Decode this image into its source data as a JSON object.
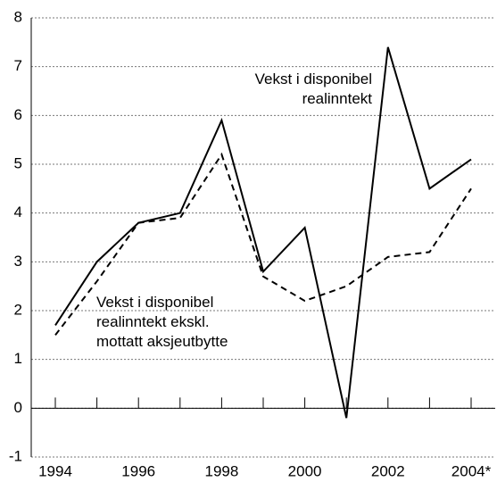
{
  "chart_data": {
    "type": "line",
    "categories": [
      "1994",
      null,
      "1996",
      null,
      "1998",
      null,
      "2000",
      null,
      "2002",
      null,
      "2004*"
    ],
    "series": [
      {
        "name": "Vekst i disponibel\nrealinntekt",
        "color": "#000000",
        "dash": "solid",
        "values": [
          1.7,
          3.0,
          3.8,
          4.0,
          5.9,
          2.8,
          3.7,
          -0.2,
          7.4,
          4.5,
          5.1
        ]
      },
      {
        "name": "Vekst i disponibel\nrealinntekt ekskl.\nmottatt aksjeutbytte",
        "color": "#000000",
        "dash": "dashed",
        "values": [
          1.5,
          2.6,
          3.8,
          3.9,
          5.2,
          2.7,
          2.2,
          2.5,
          3.1,
          3.2,
          4.5
        ]
      }
    ],
    "ylim": [
      -1,
      8
    ],
    "yticks": [
      -1,
      0,
      1,
      2,
      3,
      4,
      5,
      6,
      7,
      8
    ],
    "grid": true
  }
}
